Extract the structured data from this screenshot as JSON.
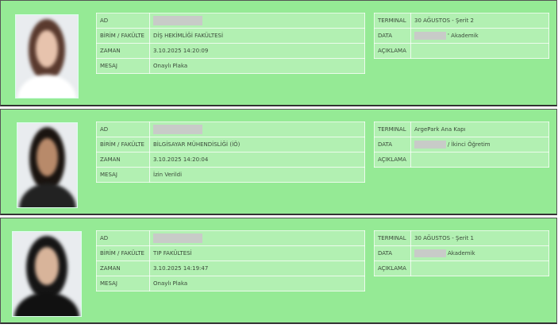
{
  "records": [
    {
      "left": [
        {
          "label": "AD"
        },
        {
          "label": "BİRİM / FAKÜLTE",
          "value": "DİŞ HEKİMLİĞİ FAKÜLTESİ"
        },
        {
          "label": "ZAMAN",
          "value": "3.10.2025 14:20:09"
        },
        {
          "label": "MESAJ",
          "value": "Onaylı Plaka"
        }
      ],
      "right": [
        {
          "label": "TERMINAL",
          "value": "30 AĞUSTOS - Şerit 2"
        },
        {
          "label": "DATA",
          "value": "' Akademik"
        },
        {
          "label": "AÇIKLAMA"
        }
      ]
    },
    {
      "left": [
        {
          "label": "AD"
        },
        {
          "label": "BİRİM / FAKÜLTE",
          "value": "BİLGİSAYAR MÜHENDİSLİĞİ (İÖ)"
        },
        {
          "label": "ZAMAN",
          "value": "3.10.2025 14:20:04"
        },
        {
          "label": "MESAJ",
          "value": "İzin Verildi"
        }
      ],
      "right": [
        {
          "label": "TERMINAL",
          "value": "ArgePark Ana Kapı"
        },
        {
          "label": "DATA",
          "value": "/ İkinci Öğretim"
        },
        {
          "label": "AÇIKLAMA"
        }
      ]
    },
    {
      "left": [
        {
          "label": "AD"
        },
        {
          "label": "BİRİM / FAKÜLTE",
          "value": "TIP FAKÜLTESİ"
        },
        {
          "label": "ZAMAN",
          "value": "3.10.2025 14:19:47"
        },
        {
          "label": "MESAJ",
          "value": "Onaylı Plaka"
        }
      ],
      "right": [
        {
          "label": "TERMINAL",
          "value": "30 AĞUSTOS - Şerit 1"
        },
        {
          "label": "DATA",
          "value": "Akademik"
        },
        {
          "label": "AÇIKLAMA"
        }
      ]
    }
  ]
}
